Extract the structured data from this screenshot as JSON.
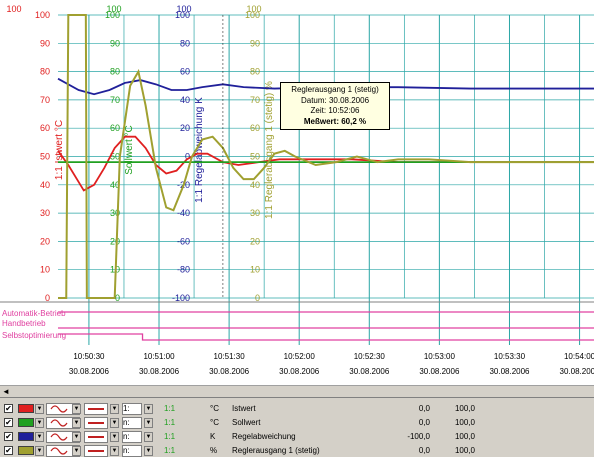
{
  "colors": {
    "istwert": "#e02020",
    "sollwert": "#20a020",
    "regelabweichung": "#20209a",
    "reglerausgang": "#a0a030",
    "grid": "#2aa6a6",
    "binary": "#e040a0",
    "axis_text": "#000000"
  },
  "chart_data": {
    "type": "line",
    "x": [
      "10:50:30",
      "10:51:00",
      "10:51:30",
      "10:52:00",
      "10:52:30",
      "10:53:00",
      "10:53:30",
      "10:54:00"
    ],
    "x_dates": [
      "30.08.2006",
      "30.08.2006",
      "30.08.2006",
      "30.08.2006",
      "30.08.2006",
      "30.08.2006",
      "30.08.2006",
      "30.08.2006"
    ],
    "axes": [
      {
        "label": "1:1 Istwert °C",
        "ticks": [
          "100",
          "90",
          "80",
          "70",
          "60",
          "50",
          "40",
          "30",
          "20",
          "10",
          "0"
        ],
        "ylim": [
          0,
          100
        ]
      },
      {
        "label": "Sollwert °C",
        "ticks": [
          "100",
          "90",
          "80",
          "70",
          "60",
          "50",
          "40",
          "30",
          "20",
          "10",
          "0"
        ],
        "ylim": [
          0,
          100
        ]
      },
      {
        "label": "1:1 Regelabweichung K",
        "ticks": [
          "100",
          "80",
          "60",
          "40",
          "20",
          "0",
          "-20",
          "-40",
          "-60",
          "-80",
          "-100"
        ],
        "ylim": [
          -100,
          100
        ]
      },
      {
        "label": "1:1 Reglerausgang 1 (stetig) %",
        "ticks": [
          "100",
          "90",
          "80",
          "70",
          "60",
          "50",
          "40",
          "30",
          "20",
          "10",
          "0"
        ],
        "ylim": [
          0,
          100
        ]
      }
    ],
    "series": [
      {
        "name": "Istwert",
        "color": "#e02020",
        "points": [
          [
            0,
            52
          ],
          [
            10,
            47
          ],
          [
            20,
            41
          ],
          [
            25,
            38
          ],
          [
            35,
            40
          ],
          [
            45,
            46
          ],
          [
            55,
            53
          ],
          [
            65,
            57
          ],
          [
            75,
            57
          ],
          [
            85,
            53
          ],
          [
            95,
            47
          ],
          [
            105,
            44
          ],
          [
            115,
            45
          ],
          [
            125,
            49
          ],
          [
            135,
            51
          ],
          [
            145,
            51
          ],
          [
            160,
            48
          ],
          [
            175,
            47
          ],
          [
            195,
            48
          ],
          [
            215,
            49
          ],
          [
            245,
            49
          ],
          [
            285,
            49
          ],
          [
            330,
            48
          ],
          [
            390,
            48
          ],
          [
            450,
            48
          ],
          [
            520,
            48
          ]
        ]
      },
      {
        "name": "Sollwert",
        "color": "#20a020",
        "points": [
          [
            0,
            48
          ],
          [
            520,
            48
          ]
        ]
      },
      {
        "name": "Regelabweichung",
        "color": "#20209a",
        "points": [
          [
            0,
            55
          ],
          [
            20,
            47
          ],
          [
            35,
            44
          ],
          [
            50,
            47
          ],
          [
            65,
            52
          ],
          [
            80,
            54
          ],
          [
            95,
            51
          ],
          [
            110,
            47
          ],
          [
            125,
            47
          ],
          [
            140,
            49
          ],
          [
            160,
            51
          ],
          [
            180,
            49
          ],
          [
            210,
            48
          ],
          [
            260,
            49
          ],
          [
            330,
            49
          ],
          [
            400,
            48
          ],
          [
            520,
            48
          ]
        ]
      },
      {
        "name": "Reglerausgang 1 (stetig)",
        "color": "#a0a030",
        "points": [
          [
            0,
            0
          ],
          [
            8,
            0
          ],
          [
            10,
            100
          ],
          [
            20,
            100
          ],
          [
            27,
            100
          ],
          [
            28,
            0
          ],
          [
            55,
            0
          ],
          [
            60,
            50
          ],
          [
            70,
            75
          ],
          [
            78,
            80
          ],
          [
            85,
            68
          ],
          [
            95,
            46
          ],
          [
            105,
            32
          ],
          [
            112,
            31
          ],
          [
            122,
            40
          ],
          [
            130,
            50
          ],
          [
            140,
            56
          ],
          [
            150,
            57
          ],
          [
            160,
            53
          ],
          [
            170,
            46
          ],
          [
            180,
            42
          ],
          [
            190,
            42
          ],
          [
            200,
            46
          ],
          [
            210,
            51
          ],
          [
            220,
            52
          ],
          [
            230,
            50
          ],
          [
            250,
            47
          ],
          [
            270,
            48
          ],
          [
            290,
            50
          ],
          [
            310,
            48
          ],
          [
            330,
            49
          ],
          [
            360,
            49
          ],
          [
            400,
            48
          ],
          [
            450,
            48
          ],
          [
            520,
            48
          ]
        ]
      }
    ],
    "binary_tracks": [
      {
        "name": "Automatik-Betrieb",
        "color": "#e040a0",
        "levels": [
          [
            0,
            1
          ],
          [
            520,
            1
          ]
        ]
      },
      {
        "name": "Handbetrieb",
        "color": "#e040a0",
        "levels": [
          [
            0,
            0
          ],
          [
            520,
            0
          ]
        ]
      },
      {
        "name": "Selbstoptimierung",
        "color": "#e040a0",
        "levels": [
          [
            0,
            1
          ],
          [
            82,
            1
          ],
          [
            82,
            0
          ],
          [
            520,
            0
          ]
        ]
      }
    ],
    "grid": true
  },
  "chart": {
    "top_labels": [
      "100",
      "100",
      "100",
      "100"
    ],
    "binary_labels": [
      "Automatik-Betrieb",
      "Handbetrieb",
      "Selbstoptimierung"
    ]
  },
  "tooltip": {
    "title": "Reglerausgang 1 (stetig)",
    "date": "Datum: 30.08.2006",
    "time": "Zeit: 10:52:06",
    "value": "Meßwert: 60,2 %"
  },
  "legend": {
    "rows": [
      {
        "color": "#e02020",
        "ratio": "1:1",
        "unit": "°C",
        "name": "Istwert",
        "min": "0,0",
        "max": "100,0",
        "scale": "1:",
        "checked": "✔"
      },
      {
        "color": "#20a020",
        "ratio": "1:1",
        "unit": "°C",
        "name": "Sollwert",
        "min": "0,0",
        "max": "100,0",
        "scale": "n:",
        "checked": "✔"
      },
      {
        "color": "#20209a",
        "ratio": "1:1",
        "unit": "K",
        "name": "Regelabweichung",
        "min": "-100,0",
        "max": "100,0",
        "scale": "n:",
        "checked": "✔"
      },
      {
        "color": "#a0a030",
        "ratio": "1:1",
        "unit": "%",
        "name": "Reglerausgang 1 (stetig)",
        "min": "0,0",
        "max": "100,0",
        "scale": "n:",
        "checked": "✔"
      }
    ]
  },
  "scrollbar": {
    "left_arrow": "◄"
  }
}
